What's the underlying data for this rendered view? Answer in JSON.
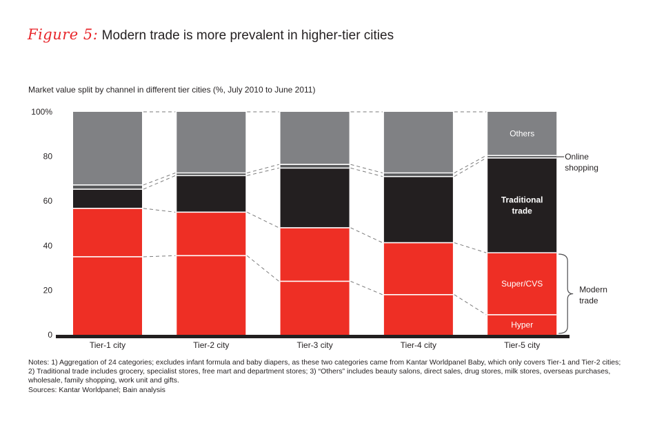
{
  "figure": {
    "label": "Figure 5:",
    "title": "Modern trade is more prevalent in higher-tier cities"
  },
  "notes": [
    "Notes: 1) Aggregation of 24 categories; excludes infant formula and baby diapers, as these two categories came from Kantar Worldpanel Baby, which only covers Tier-1 and Tier-2 cities;",
    "2) Traditional trade includes grocery, specialist stores, free mart and department stores; 3) “Others” includes beauty salons, direct sales, drug stores, milk stores, overseas purchases,",
    "wholesale, family shopping, work unit and gifts.",
    "Sources: Kantar Worldpanel; Bain analysis"
  ],
  "chart_data": {
    "type": "bar",
    "stacked": true,
    "title": "Market value split by channel in different tier cities (%, July 2010 to June 2011)",
    "xlabel": "",
    "ylabel": "",
    "ylim": [
      0,
      100
    ],
    "yticks": [
      "0",
      "20",
      "40",
      "60",
      "80",
      "100%"
    ],
    "ytick_values": [
      0,
      20,
      40,
      60,
      80,
      100
    ],
    "categories": [
      "Tier-1 city",
      "Tier-2 city",
      "Tier-3 city",
      "Tier-4 city",
      "Tier-5 city"
    ],
    "series": [
      {
        "name": "Hyper",
        "color": "#ee2f25",
        "values": [
          35,
          35.5,
          24,
          18,
          9
        ]
      },
      {
        "name": "Super/CVS",
        "color": "#ee2f25",
        "values": [
          21.7,
          19.5,
          24,
          23.3,
          27.8
        ]
      },
      {
        "name": "Traditional trade",
        "color": "#231f20",
        "values": [
          8.6,
          16.4,
          26.8,
          29.7,
          42.5
        ]
      },
      {
        "name": "Online shopping",
        "color": "#58595b",
        "values": [
          1.9,
          1.2,
          1.6,
          1.6,
          1.1
        ]
      },
      {
        "name": "Others",
        "color": "#808184",
        "values": [
          32.8,
          27.4,
          23.6,
          27.4,
          19.6
        ]
      }
    ],
    "segment_labels": {
      "Hyper": "Hyper",
      "Super/CVS": "Super/CVS",
      "Traditional trade": [
        "Traditional",
        "trade"
      ],
      "Others": "Others"
    },
    "annotations": {
      "online_shopping": [
        "Online",
        "shopping"
      ],
      "modern_trade": [
        "Modern",
        "trade"
      ]
    },
    "connectors": "dashed lines join matching segment boundaries between adjacent bars",
    "legend": "inline labels on last bar (right)",
    "grid": false
  }
}
